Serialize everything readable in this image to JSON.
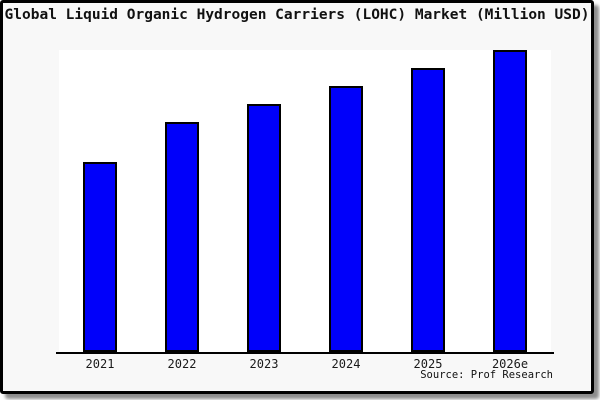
{
  "chart_data": {
    "type": "bar",
    "title": "Global Liquid Organic Hydrogen Carriers (LOHC) Market (Million USD)",
    "categories": [
      "2021",
      "2022",
      "2023",
      "2024",
      "2025",
      "2026e"
    ],
    "values": [
      63,
      76,
      82,
      88,
      94,
      100
    ],
    "value_units": "relative bar height (% of tallest bar); no numeric y-axis shown in image",
    "xlabel": "",
    "ylabel": "",
    "ylim": [
      0,
      100
    ],
    "grid": false,
    "legend": false,
    "source_label": "Source: Prof Research",
    "colors": {
      "bar_fill": "#0000fa",
      "bar_border": "#000000",
      "plot_background": "#ffffff",
      "chart_background": "#f8f8f8",
      "frame_border": "#000000",
      "axis_line": "#000000",
      "text": "#111111"
    }
  }
}
